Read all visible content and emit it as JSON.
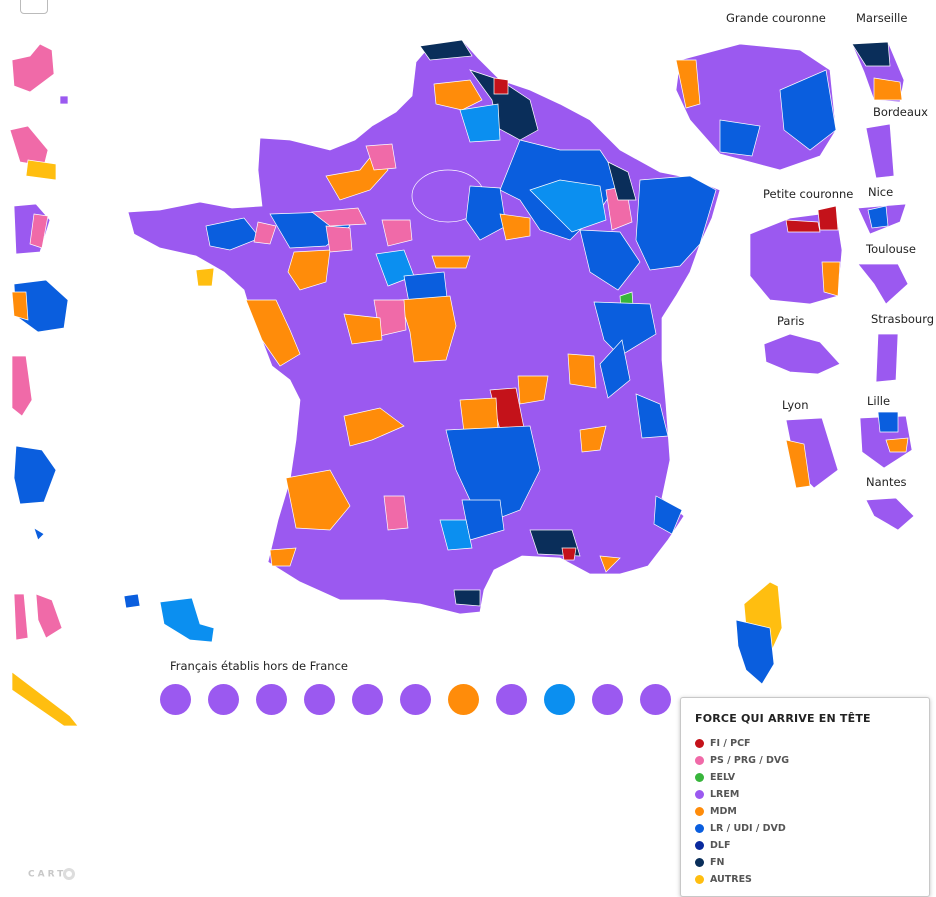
{
  "colors": {
    "fi_pcf": "#c4121a",
    "ps": "#f06aa8",
    "eelv": "#38b53c",
    "lrem": "#9b59f0",
    "mdm": "#ff8c0a",
    "lr": "#0a5ede",
    "dlf": "#0a2a9e",
    "fn": "#0a2e5a",
    "autres": "#ffbe10",
    "lr_light": "#0b8ff0",
    "border": "#ffffff"
  },
  "insets": {
    "grande_couronne": "Grande couronne",
    "marseille": "Marseille",
    "bordeaux": "Bordeaux",
    "petite_couronne": "Petite couronne",
    "nice": "Nice",
    "toulouse": "Toulouse",
    "paris": "Paris",
    "strasbourg": "Strasbourg",
    "lyon": "Lyon",
    "lille": "Lille",
    "nantes": "Nantes"
  },
  "overseas": {
    "label": "Français établis hors de France",
    "dots": [
      "lrem",
      "lrem",
      "lrem",
      "lrem",
      "lrem",
      "lrem",
      "mdm",
      "lrem",
      "lr_light",
      "lrem",
      "lrem"
    ]
  },
  "legend": {
    "title": "FORCE QUI ARRIVE EN TÊTE",
    "items": [
      {
        "label": "FI / PCF",
        "color": "fi_pcf"
      },
      {
        "label": "PS / PRG / DVG",
        "color": "ps"
      },
      {
        "label": "EELV",
        "color": "eelv"
      },
      {
        "label": "LREM",
        "color": "lrem"
      },
      {
        "label": "MDM",
        "color": "mdm"
      },
      {
        "label": "LR / UDI / DVD",
        "color": "lr"
      },
      {
        "label": "DLF",
        "color": "dlf"
      },
      {
        "label": "FN",
        "color": "fn"
      },
      {
        "label": "AUTRES",
        "color": "autres"
      }
    ]
  },
  "attribution": "CART"
}
